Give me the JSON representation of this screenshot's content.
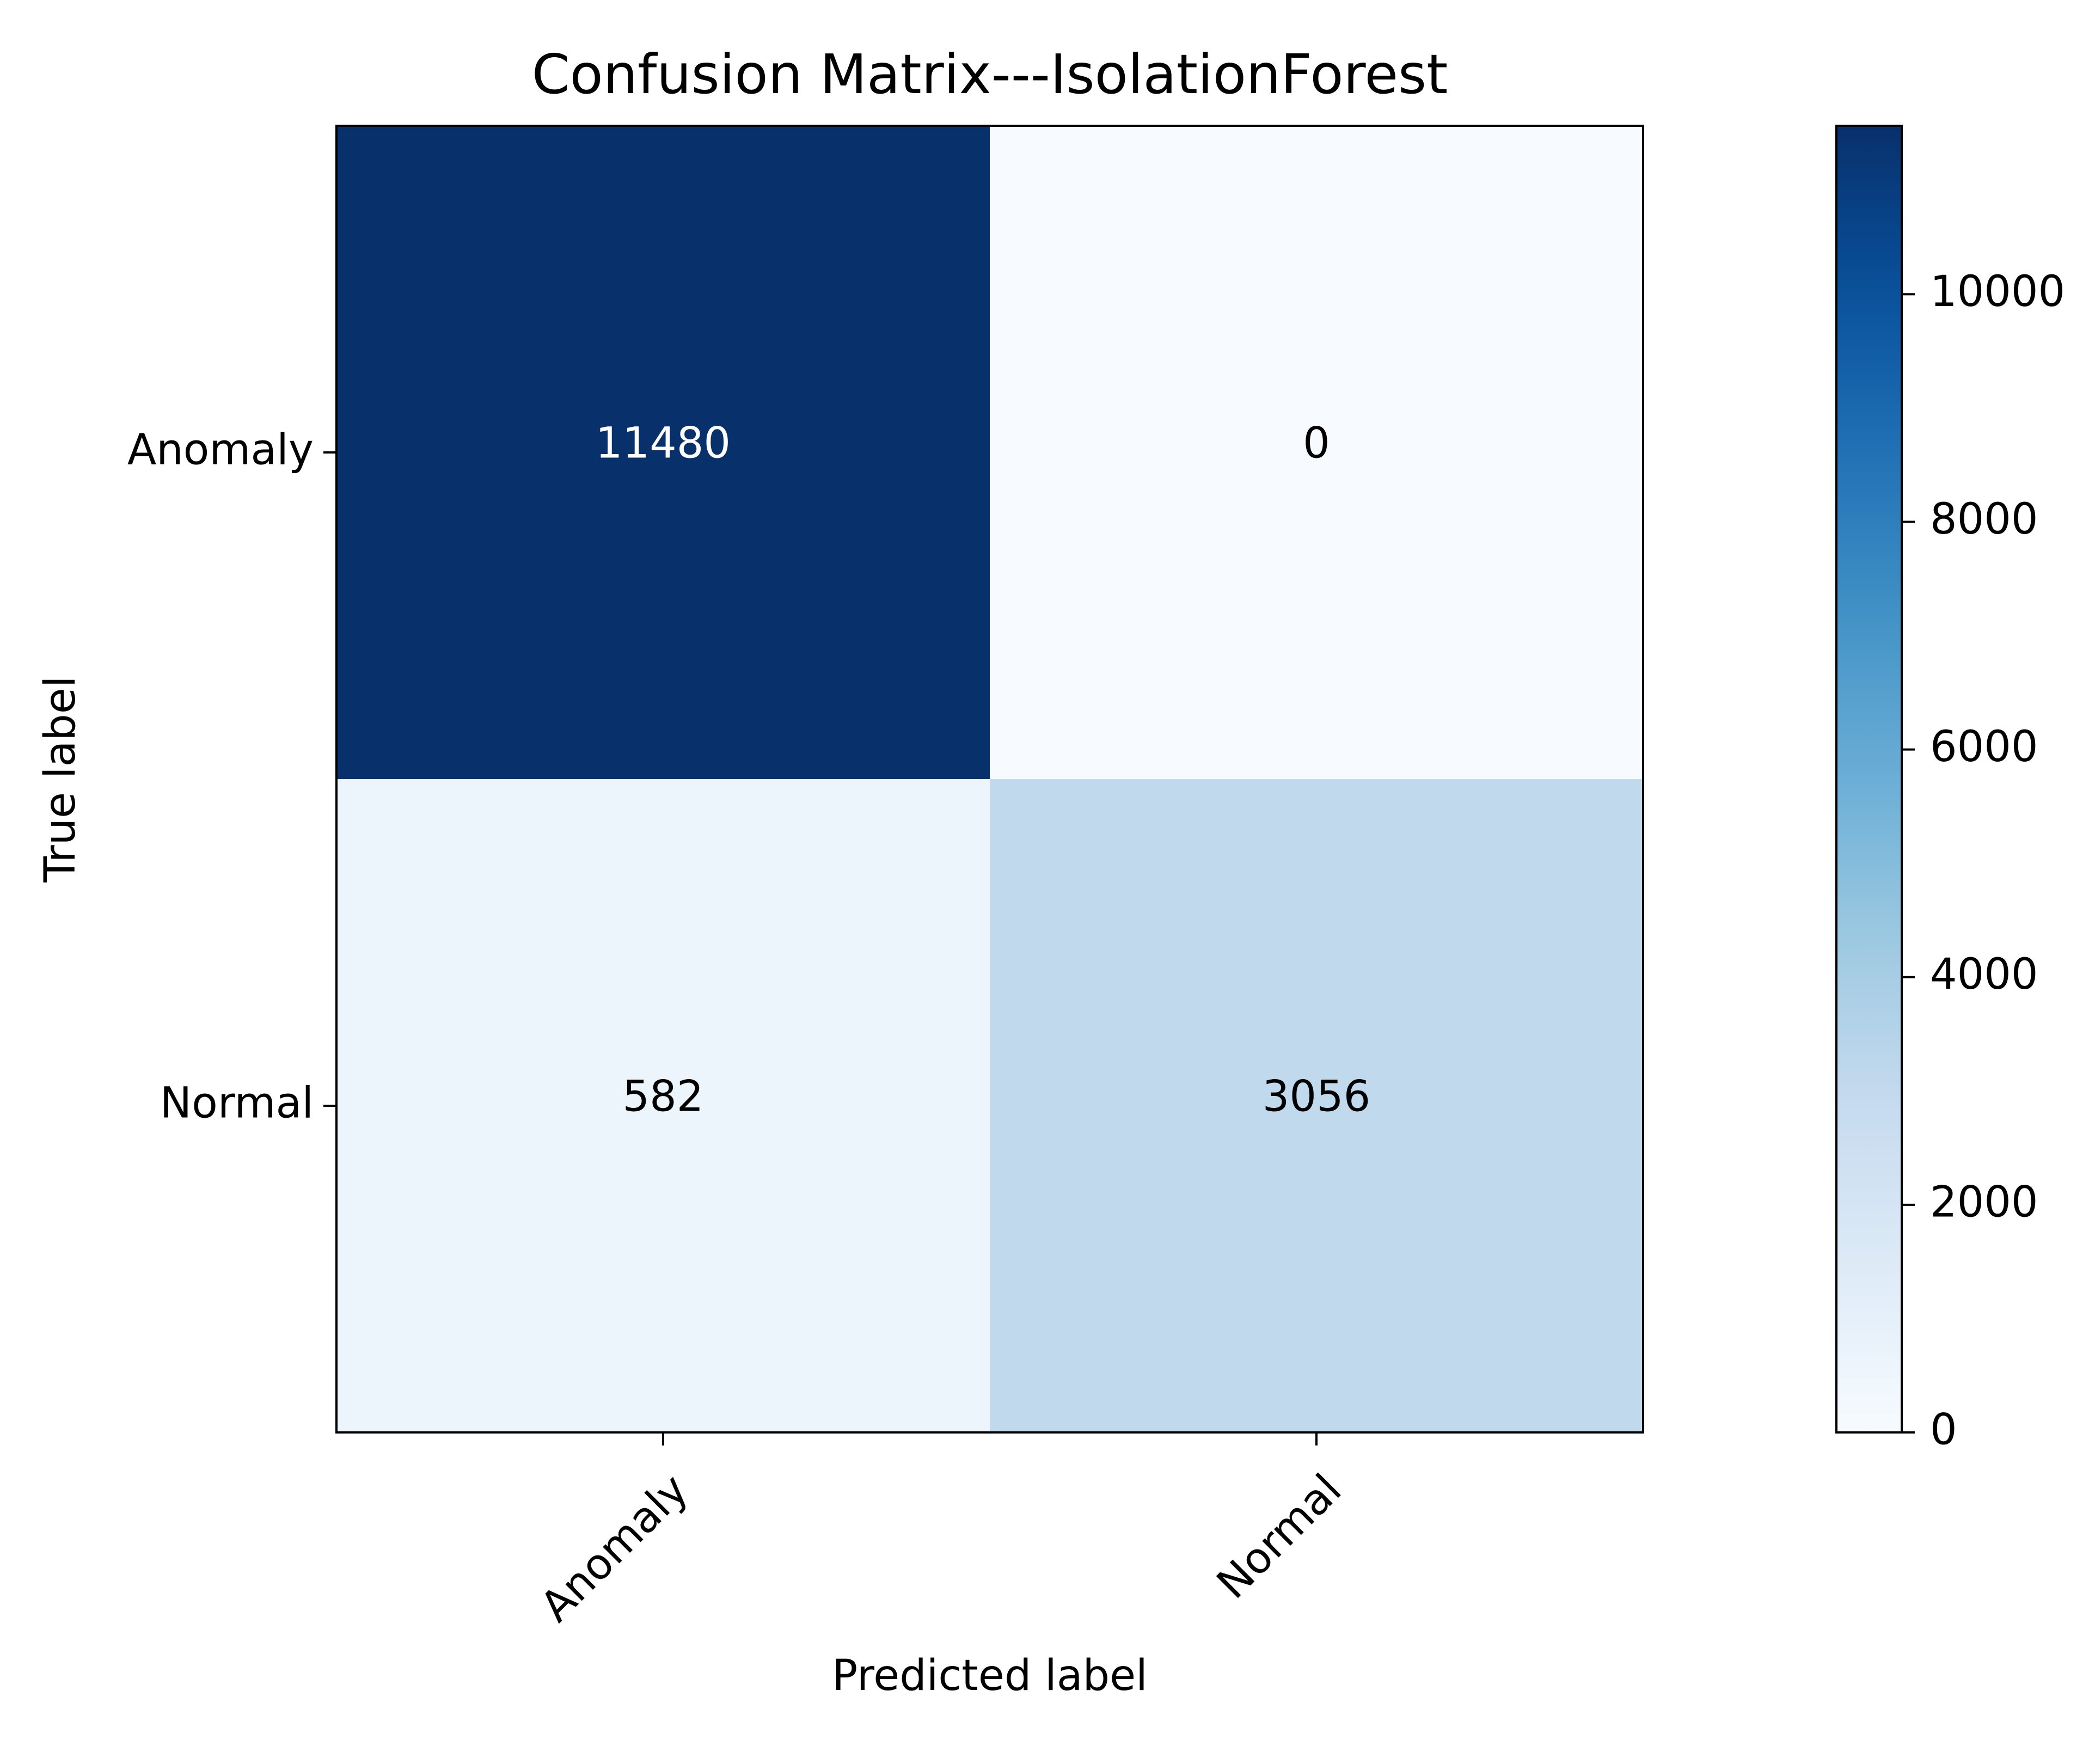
{
  "chart_data": {
    "type": "heatmap",
    "title": "Confusion Matrix---IsolationForest",
    "xlabel": "Predicted label",
    "ylabel": "True label",
    "x_categories": [
      "Anomaly",
      "Normal"
    ],
    "y_categories": [
      "Anomaly",
      "Normal"
    ],
    "values": [
      [
        11480,
        0
      ],
      [
        582,
        3056
      ]
    ],
    "colormap": "Blues",
    "colorbar": {
      "vmin": 0,
      "vmax": 11480,
      "ticks": [
        0,
        2000,
        4000,
        6000,
        8000,
        10000
      ]
    },
    "text_colors": {
      "dark": "#ffffff",
      "light": "#000000"
    },
    "colors": {
      "blues_stops": [
        "#f7fbff",
        "#deebf7",
        "#c6dbef",
        "#9ecae1",
        "#6baed6",
        "#4292c6",
        "#2171b5",
        "#08519c",
        "#08306b"
      ]
    }
  }
}
